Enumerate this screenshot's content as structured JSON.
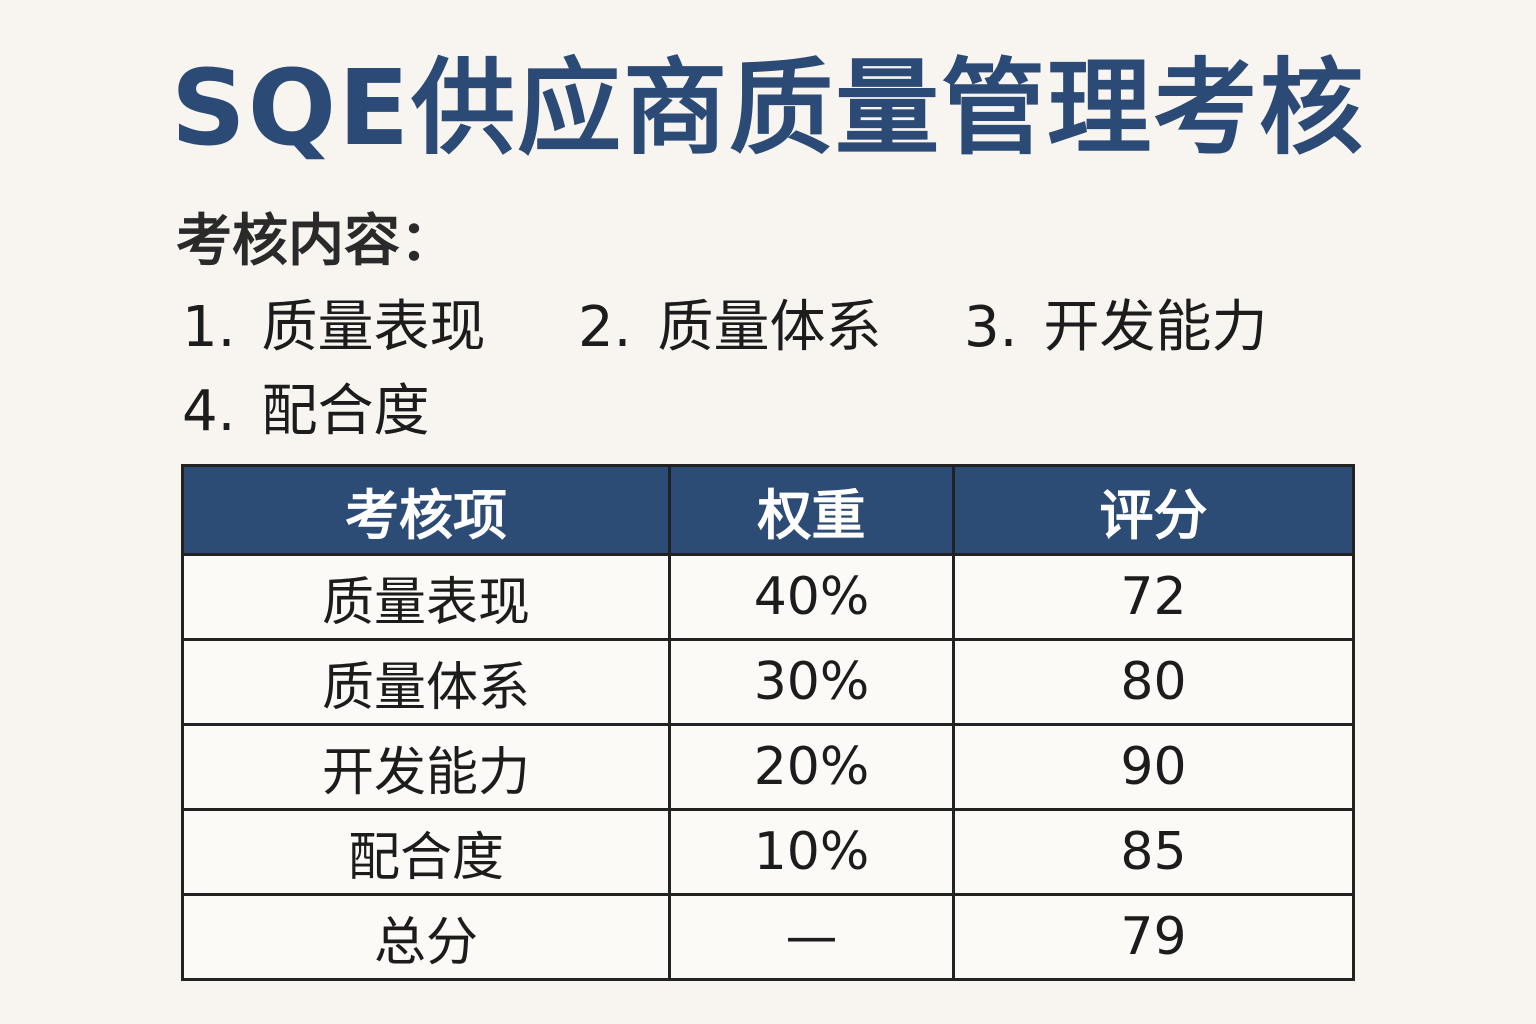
{
  "title": "SQE供应商质量管理考核",
  "content_label": "考核内容：",
  "content_items": [
    {
      "num": "1.",
      "text": "质量表现"
    },
    {
      "num": "2.",
      "text": "质量体系"
    },
    {
      "num": "3.",
      "text": "开发能力"
    },
    {
      "num": "4.",
      "text": "配合度"
    }
  ],
  "table": {
    "headers": [
      "考核项",
      "权重",
      "评分"
    ],
    "rows": [
      {
        "item": "质量表现",
        "weight": "40%",
        "score": "72"
      },
      {
        "item": "质量体系",
        "weight": "30%",
        "score": "80"
      },
      {
        "item": "开发能力",
        "weight": "20%",
        "score": "90"
      },
      {
        "item": "配合度",
        "weight": "10%",
        "score": "85"
      },
      {
        "item": "总分",
        "weight": "—",
        "score": "79"
      }
    ]
  },
  "colors": {
    "title": "#2b4a76",
    "header_bg": "#2c4b75",
    "background": "#f8f5f0"
  }
}
